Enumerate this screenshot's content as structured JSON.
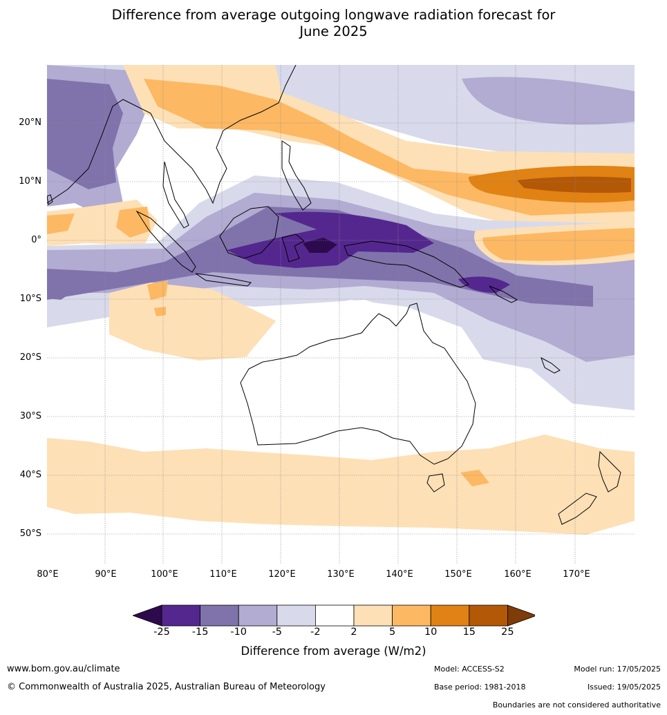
{
  "title_line1": "Difference from average outgoing longwave radiation forecast for",
  "title_line2": "June 2025",
  "lat_labels": [
    "20°N",
    "10°N",
    "0°",
    "10°S",
    "20°S",
    "30°S",
    "40°S",
    "50°S"
  ],
  "lon_labels": [
    "80°E",
    "90°E",
    "100°E",
    "110°E",
    "120°E",
    "130°E",
    "140°E",
    "150°E",
    "160°E",
    "170°E"
  ],
  "colorbar": {
    "ticks": [
      "-25",
      "-15",
      "-10",
      "-5",
      "-2",
      "2",
      "5",
      "10",
      "15",
      "25"
    ],
    "colors": [
      "#2d0a4d",
      "#54278f",
      "#8073ac",
      "#b2abd2",
      "#d8daeb",
      "#ffffff",
      "#fee0b6",
      "#fdb863",
      "#e08214",
      "#b35806",
      "#7f3b08"
    ],
    "label": "Difference from average (W/m2)"
  },
  "footer": {
    "website": "www.bom.gov.au/climate",
    "copyright": "© Commonwealth of Australia 2025, Australian Bureau of Meteorology",
    "model": "Model: ACCESS-S2",
    "base_period": "Base period: 1981-2018",
    "model_run": "Model run: 17/05/2025",
    "issued": "Issued: 19/05/2025",
    "boundaries_note": "Boundaries are not considered authoritative"
  }
}
